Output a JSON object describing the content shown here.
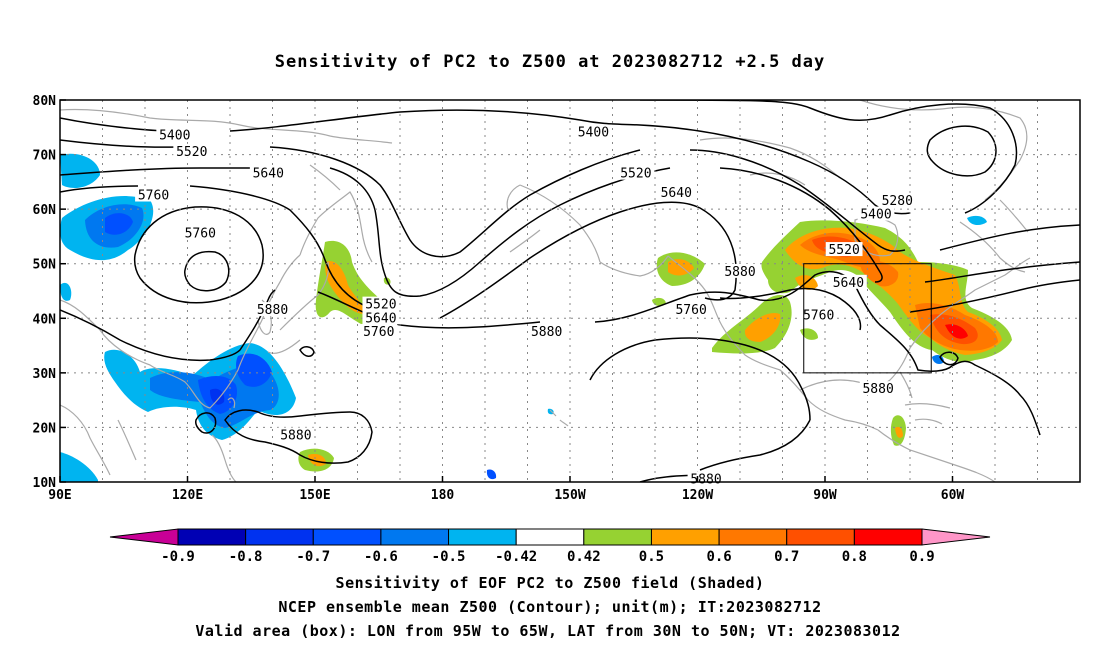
{
  "title": "Sensitivity of PC2 to Z500 at 2023082712 +2.5 day",
  "lat_ticks": [
    "80N",
    "70N",
    "60N",
    "50N",
    "40N",
    "30N",
    "20N",
    "10N"
  ],
  "lon_ticks": [
    "90E",
    "120E",
    "150E",
    "180",
    "150W",
    "120W",
    "90W",
    "60W"
  ],
  "contour_labels": [
    {
      "text": "5400",
      "lon": 117,
      "lat": 73.5
    },
    {
      "text": "5520",
      "lon": 121,
      "lat": 70.5
    },
    {
      "text": "5640",
      "lon": 139,
      "lat": 66.5
    },
    {
      "text": "5760",
      "lon": 112,
      "lat": 62.5
    },
    {
      "text": "5760",
      "lon": 123,
      "lat": 55.5
    },
    {
      "text": "5880",
      "lon": 140,
      "lat": 41.5
    },
    {
      "text": "5880",
      "lon": 145.5,
      "lat": 18.5
    },
    {
      "text": "5520",
      "lon": 165.5,
      "lat": 42.5
    },
    {
      "text": "5640",
      "lon": 165.5,
      "lat": 40
    },
    {
      "text": "5760",
      "lon": 165,
      "lat": 37.5
    },
    {
      "text": "5880",
      "lon": 204.5,
      "lat": 37.5
    },
    {
      "text": "5400",
      "lon": 215.5,
      "lat": 74
    },
    {
      "text": "5520",
      "lon": 225.5,
      "lat": 66.5
    },
    {
      "text": "5640",
      "lon": 235,
      "lat": 63
    },
    {
      "text": "5760",
      "lon": 238.5,
      "lat": 41.5
    },
    {
      "text": "5880",
      "lon": 250,
      "lat": 48.5
    },
    {
      "text": "5880",
      "lon": 242,
      "lat": 10.5
    },
    {
      "text": "5280",
      "lon": 287,
      "lat": 61.5
    },
    {
      "text": "5400",
      "lon": 282,
      "lat": 59
    },
    {
      "text": "5520",
      "lon": 274.5,
      "lat": 52.5
    },
    {
      "text": "5640",
      "lon": 275.5,
      "lat": 46.5
    },
    {
      "text": "5760",
      "lon": 268.5,
      "lat": 40.5
    },
    {
      "text": "5880",
      "lon": 282.5,
      "lat": 27
    }
  ],
  "colorbar": {
    "labels": [
      "-0.9",
      "-0.8",
      "-0.7",
      "-0.6",
      "-0.5",
      "-0.42",
      "0.42",
      "0.5",
      "0.6",
      "0.7",
      "0.8",
      "0.9"
    ],
    "colors": [
      "#0000B4",
      "#0032F0",
      "#0050FF",
      "#0078F0",
      "#00B4F0",
      "#FFFFFF",
      "#96D232",
      "#FFA000",
      "#FF7800",
      "#FF5000",
      "#FF0000"
    ],
    "low_color": "#C80096",
    "high_color": "#FF96C8"
  },
  "valid_box": {
    "lon_min": 265,
    "lon_max": 295,
    "lat_min": 30,
    "lat_max": 50
  },
  "captions": [
    "Sensitivity of EOF PC2 to Z500 field (Shaded)",
    "NCEP ensemble mean Z500 (Contour); unit(m); IT:2023082712",
    "Valid area (box): LON from 95W to 65W, LAT from 30N to 50N; VT: 2023083012"
  ]
}
